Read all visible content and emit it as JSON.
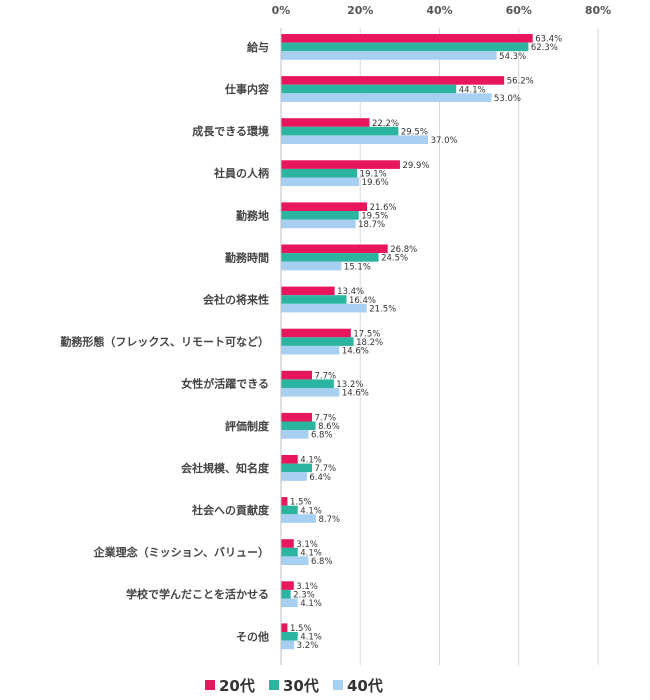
{
  "chart_data": {
    "type": "bar",
    "orientation": "horizontal",
    "xlim": [
      0,
      80
    ],
    "ticks": [
      {
        "value": 0,
        "label": "0%"
      },
      {
        "value": 20,
        "label": "20%"
      },
      {
        "value": 40,
        "label": "40%"
      },
      {
        "value": 60,
        "label": "60%"
      },
      {
        "value": 80,
        "label": "80%"
      }
    ],
    "grid": true,
    "axis_position": "top",
    "legend_position": "bottom-center",
    "categories": [
      "給与",
      "仕事内容",
      "成長できる環境",
      "社員の人柄",
      "勤務地",
      "勤務時間",
      "会社の将来性",
      "勤務形態（フレックス、リモート可など）",
      "女性が活躍できる",
      "評価制度",
      "会社規模、知名度",
      "社会への貢献度",
      "企業理念（ミッション、バリュー）",
      "学校で学んだことを活かせる",
      "その他"
    ],
    "series": [
      {
        "name": "20代",
        "color": "#E8175D",
        "values": [
          63.4,
          56.2,
          22.2,
          29.9,
          21.6,
          26.8,
          13.4,
          17.5,
          7.7,
          7.7,
          4.1,
          1.5,
          3.1,
          3.1,
          1.5
        ],
        "labels": [
          "63.4%",
          "56.2%",
          "22.2%",
          "29.9%",
          "21.6%",
          "26.8%",
          "13.4%",
          "17.5%",
          "7.7%",
          "7.7%",
          "4.1%",
          "1.5%",
          "3.1%",
          "3.1%",
          "1.5%"
        ]
      },
      {
        "name": "30代",
        "color": "#2BB5A0",
        "values": [
          62.3,
          44.1,
          29.5,
          19.1,
          19.5,
          24.5,
          16.4,
          18.2,
          13.2,
          8.6,
          7.7,
          4.1,
          4.1,
          2.3,
          4.1
        ],
        "labels": [
          "62.3%",
          "44.1%",
          "29.5%",
          "19.1%",
          "19.5%",
          "24.5%",
          "16.4%",
          "18.2%",
          "13.2%",
          "8.6%",
          "7.7%",
          "4.1%",
          "4.1%",
          "2.3%",
          "4.1%"
        ]
      },
      {
        "name": "40代",
        "color": "#A7CFF2",
        "values": [
          54.3,
          53.0,
          37.0,
          19.6,
          18.7,
          15.1,
          21.5,
          14.6,
          14.6,
          6.8,
          6.4,
          8.7,
          6.8,
          4.1,
          3.2
        ],
        "labels": [
          "54.3%",
          "53.0%",
          "37.0%",
          "19.6%",
          "18.7%",
          "15.1%",
          "21.5%",
          "14.6%",
          "14.6%",
          "6.8%",
          "6.4%",
          "8.7%",
          "6.8%",
          "4.1%",
          "3.2%"
        ]
      }
    ]
  }
}
